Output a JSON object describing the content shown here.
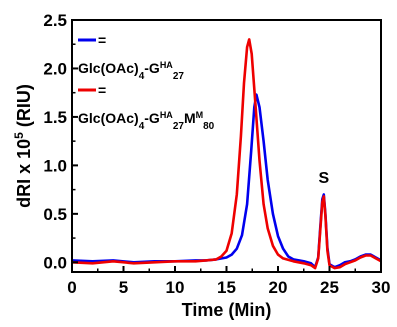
{
  "chart_data": {
    "type": "line",
    "xlabel": "Time (Min)",
    "ylabel_main": "dRI x 10",
    "ylabel_exp": "5",
    "ylabel_unit": " (RIU)",
    "xlim": [
      0,
      30
    ],
    "ylim": [
      -0.1,
      2.5
    ],
    "xticks": [
      "0",
      "5",
      "10",
      "15",
      "20",
      "25",
      "30"
    ],
    "yticks": [
      "0.0",
      "0.5",
      "1.0",
      "1.5",
      "2.0",
      "2.5"
    ],
    "grid": false,
    "legend_position": "top-left",
    "series": [
      {
        "color": "#0000ee",
        "legend_marker": "=",
        "legend_text": {
          "p1": "Glc(OAc)",
          "s1": "4",
          "p2": "-G",
          "sup1": "HA",
          "s2": "27"
        },
        "points": [
          [
            0,
            0.02
          ],
          [
            2,
            0.01
          ],
          [
            4,
            0.02
          ],
          [
            6,
            0.0
          ],
          [
            8,
            0.01
          ],
          [
            10,
            0.01
          ],
          [
            12,
            0.02
          ],
          [
            13,
            0.02
          ],
          [
            14,
            0.03
          ],
          [
            15,
            0.05
          ],
          [
            15.5,
            0.08
          ],
          [
            16,
            0.14
          ],
          [
            16.5,
            0.28
          ],
          [
            17,
            0.6
          ],
          [
            17.4,
            1.15
          ],
          [
            17.7,
            1.6
          ],
          [
            17.9,
            1.73
          ],
          [
            18.2,
            1.6
          ],
          [
            18.6,
            1.25
          ],
          [
            19,
            0.85
          ],
          [
            19.5,
            0.5
          ],
          [
            20,
            0.27
          ],
          [
            20.5,
            0.14
          ],
          [
            21,
            0.06
          ],
          [
            21.5,
            0.03
          ],
          [
            22.5,
            0.01
          ],
          [
            23.2,
            -0.01
          ],
          [
            23.6,
            -0.05
          ],
          [
            23.9,
            0.05
          ],
          [
            24.1,
            0.35
          ],
          [
            24.3,
            0.65
          ],
          [
            24.45,
            0.7
          ],
          [
            24.6,
            0.5
          ],
          [
            24.8,
            0.15
          ],
          [
            25,
            -0.02
          ],
          [
            25.5,
            -0.05
          ],
          [
            26,
            -0.03
          ],
          [
            26.5,
            0.0
          ],
          [
            27,
            0.01
          ],
          [
            27.5,
            0.03
          ],
          [
            28,
            0.06
          ],
          [
            28.5,
            0.08
          ],
          [
            29,
            0.08
          ],
          [
            29.5,
            0.05
          ],
          [
            30,
            0.02
          ]
        ]
      },
      {
        "color": "#ee0000",
        "legend_marker": "=",
        "legend_text": {
          "p1": "Glc(OAc)",
          "s1": "4",
          "p2": "-G",
          "sup1": "HA",
          "s2": "27",
          "p3": "M",
          "sup2": "M",
          "s3": "80"
        },
        "points": [
          [
            0,
            0.0
          ],
          [
            2,
            -0.01
          ],
          [
            4,
            0.01
          ],
          [
            6,
            -0.01
          ],
          [
            8,
            0.0
          ],
          [
            10,
            0.01
          ],
          [
            12,
            0.01
          ],
          [
            13,
            0.02
          ],
          [
            14,
            0.03
          ],
          [
            14.5,
            0.06
          ],
          [
            15,
            0.12
          ],
          [
            15.5,
            0.3
          ],
          [
            16,
            0.7
          ],
          [
            16.4,
            1.3
          ],
          [
            16.7,
            1.85
          ],
          [
            17,
            2.22
          ],
          [
            17.2,
            2.3
          ],
          [
            17.45,
            2.15
          ],
          [
            17.8,
            1.65
          ],
          [
            18.2,
            1.05
          ],
          [
            18.6,
            0.6
          ],
          [
            19,
            0.35
          ],
          [
            19.5,
            0.17
          ],
          [
            20,
            0.08
          ],
          [
            20.5,
            0.04
          ],
          [
            21.5,
            0.01
          ],
          [
            22.5,
            -0.01
          ],
          [
            23.2,
            -0.03
          ],
          [
            23.6,
            -0.06
          ],
          [
            23.9,
            0.04
          ],
          [
            24.1,
            0.32
          ],
          [
            24.3,
            0.62
          ],
          [
            24.45,
            0.68
          ],
          [
            24.6,
            0.48
          ],
          [
            24.8,
            0.12
          ],
          [
            25,
            -0.03
          ],
          [
            25.5,
            -0.06
          ],
          [
            26,
            -0.05
          ],
          [
            26.5,
            -0.02
          ],
          [
            27,
            0.0
          ],
          [
            27.5,
            0.02
          ],
          [
            28,
            0.05
          ],
          [
            28.5,
            0.07
          ],
          [
            29,
            0.07
          ],
          [
            29.5,
            0.04
          ],
          [
            30,
            0.01
          ]
        ]
      }
    ],
    "annotations": [
      {
        "text": "S",
        "x": 24.45,
        "y": 0.82
      }
    ]
  }
}
